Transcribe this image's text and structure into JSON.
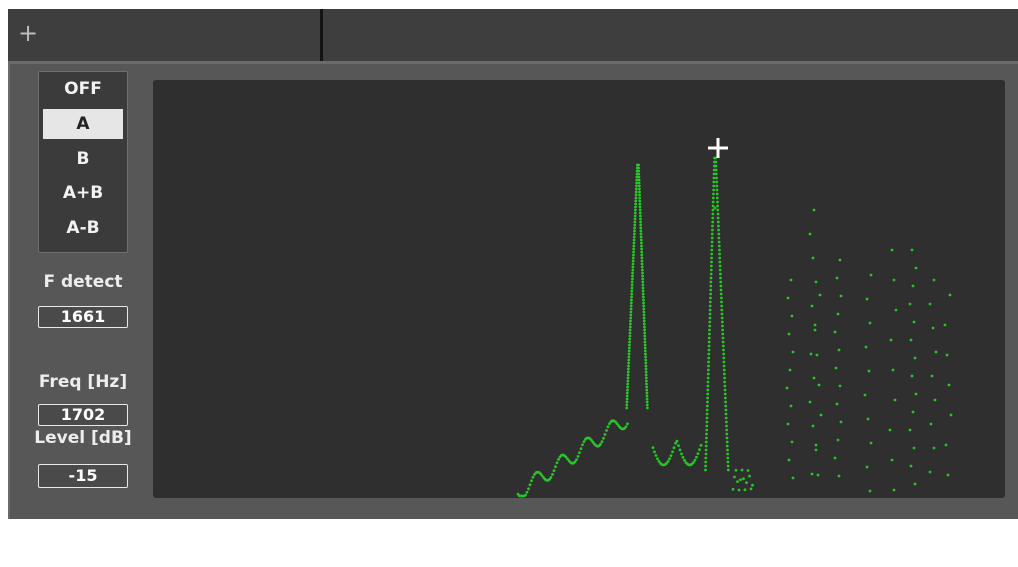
{
  "toolbar": {
    "add_icon": "+"
  },
  "modes": {
    "items": [
      "OFF",
      "A",
      "B",
      "A+B",
      "A-B"
    ],
    "selected": "A"
  },
  "f_detect": {
    "label": "F detect",
    "value": "1661"
  },
  "freq": {
    "label": "Freq [Hz]",
    "value": "1702"
  },
  "level": {
    "label": "Level [dB]",
    "value": "-15"
  },
  "colors": {
    "trace": "#28c628",
    "plot_bg": "#2f2f2f",
    "panel_bg": "#575757",
    "cursor": "#ffffff"
  }
}
